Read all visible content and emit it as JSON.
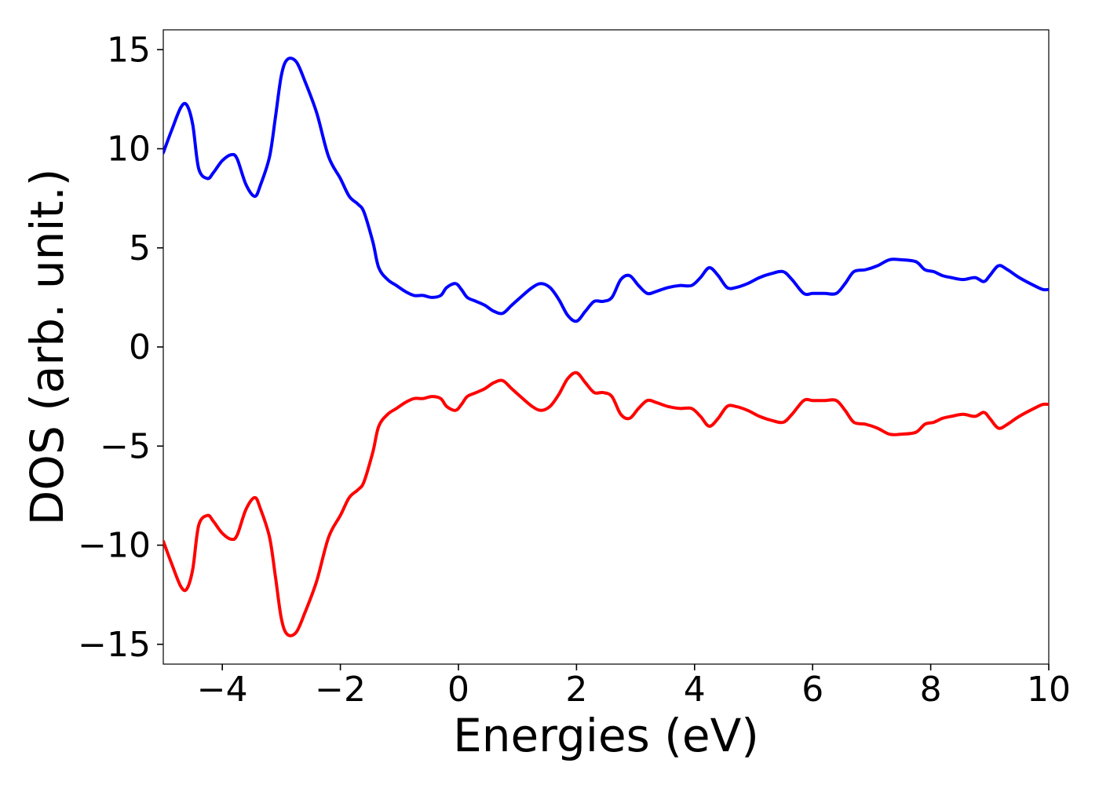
{
  "chart_data": {
    "type": "line",
    "xlabel": "Energies (eV)",
    "ylabel": "DOS (arb. unit.)",
    "xlim": [
      -5,
      10
    ],
    "ylim": [
      -16,
      16
    ],
    "xticks": [
      -4,
      -2,
      0,
      2,
      4,
      6,
      8,
      10
    ],
    "xtick_labels": [
      "−4",
      "−2",
      "0",
      "2",
      "4",
      "6",
      "8",
      "10"
    ],
    "yticks": [
      15,
      10,
      5,
      0,
      -5,
      -10,
      -15
    ],
    "ytick_labels": [
      "15",
      "10",
      "5",
      "0",
      "−5",
      "−10",
      "−15"
    ],
    "grid": false,
    "x": [
      -5.0,
      -4.85,
      -4.7,
      -4.6,
      -4.5,
      -4.4,
      -4.25,
      -4.15,
      -4.0,
      -3.85,
      -3.75,
      -3.6,
      -3.45,
      -3.35,
      -3.2,
      -3.1,
      -3.0,
      -2.9,
      -2.75,
      -2.6,
      -2.4,
      -2.2,
      -2.0,
      -1.85,
      -1.7,
      -1.6,
      -1.45,
      -1.35,
      -1.2,
      -1.05,
      -0.9,
      -0.75,
      -0.6,
      -0.45,
      -0.3,
      -0.2,
      -0.05,
      0.05,
      0.15,
      0.3,
      0.45,
      0.6,
      0.75,
      0.9,
      1.05,
      1.25,
      1.4,
      1.55,
      1.7,
      1.85,
      2.0,
      2.15,
      2.3,
      2.45,
      2.6,
      2.75,
      2.9,
      3.05,
      3.2,
      3.35,
      3.55,
      3.75,
      3.95,
      4.1,
      4.25,
      4.4,
      4.55,
      4.7,
      4.9,
      5.1,
      5.3,
      5.5,
      5.65,
      5.85,
      6.0,
      6.2,
      6.4,
      6.55,
      6.7,
      6.9,
      7.1,
      7.3,
      7.5,
      7.75,
      7.9,
      8.05,
      8.2,
      8.35,
      8.55,
      8.75,
      8.9,
      9.0,
      9.15,
      9.3,
      9.5,
      9.75,
      9.9,
      10.0
    ],
    "series": [
      {
        "color": "#0000ff",
        "values": [
          9.8,
          11.0,
          12.1,
          12.2,
          11.2,
          9.0,
          8.5,
          8.8,
          9.4,
          9.7,
          9.5,
          8.2,
          7.6,
          8.2,
          9.6,
          11.6,
          13.7,
          14.5,
          14.4,
          13.4,
          11.8,
          9.6,
          8.5,
          7.6,
          7.2,
          6.8,
          5.3,
          4.0,
          3.4,
          3.1,
          2.8,
          2.6,
          2.6,
          2.5,
          2.6,
          3.0,
          3.2,
          2.9,
          2.5,
          2.3,
          2.1,
          1.8,
          1.7,
          2.1,
          2.5,
          3.0,
          3.2,
          3.0,
          2.4,
          1.6,
          1.3,
          1.8,
          2.3,
          2.3,
          2.5,
          3.4,
          3.6,
          3.1,
          2.7,
          2.8,
          3.0,
          3.1,
          3.1,
          3.5,
          4.0,
          3.6,
          3.0,
          3.0,
          3.2,
          3.5,
          3.7,
          3.8,
          3.4,
          2.7,
          2.7,
          2.7,
          2.7,
          3.2,
          3.8,
          3.9,
          4.1,
          4.4,
          4.4,
          4.3,
          3.9,
          3.8,
          3.6,
          3.5,
          3.4,
          3.5,
          3.3,
          3.6,
          4.1,
          3.9,
          3.5,
          3.1,
          2.9,
          2.9
        ]
      },
      {
        "color": "#ff0000",
        "values": [
          -9.8,
          -11.0,
          -12.1,
          -12.2,
          -11.2,
          -9.0,
          -8.5,
          -8.8,
          -9.4,
          -9.7,
          -9.5,
          -8.2,
          -7.6,
          -8.2,
          -9.6,
          -11.6,
          -13.7,
          -14.5,
          -14.4,
          -13.4,
          -11.8,
          -9.6,
          -8.5,
          -7.6,
          -7.2,
          -6.8,
          -5.3,
          -4.0,
          -3.4,
          -3.1,
          -2.8,
          -2.6,
          -2.6,
          -2.5,
          -2.6,
          -3.0,
          -3.2,
          -2.9,
          -2.5,
          -2.3,
          -2.1,
          -1.8,
          -1.7,
          -2.1,
          -2.5,
          -3.0,
          -3.2,
          -3.0,
          -2.4,
          -1.6,
          -1.3,
          -1.8,
          -2.3,
          -2.3,
          -2.5,
          -3.4,
          -3.6,
          -3.1,
          -2.7,
          -2.8,
          -3.0,
          -3.1,
          -3.1,
          -3.5,
          -4.0,
          -3.6,
          -3.0,
          -3.0,
          -3.2,
          -3.5,
          -3.7,
          -3.8,
          -3.4,
          -2.7,
          -2.7,
          -2.7,
          -2.7,
          -3.2,
          -3.8,
          -3.9,
          -4.1,
          -4.4,
          -4.4,
          -4.3,
          -3.9,
          -3.8,
          -3.6,
          -3.5,
          -3.4,
          -3.5,
          -3.3,
          -3.6,
          -4.1,
          -3.9,
          -3.5,
          -3.1,
          -2.9,
          -2.9
        ]
      }
    ]
  }
}
